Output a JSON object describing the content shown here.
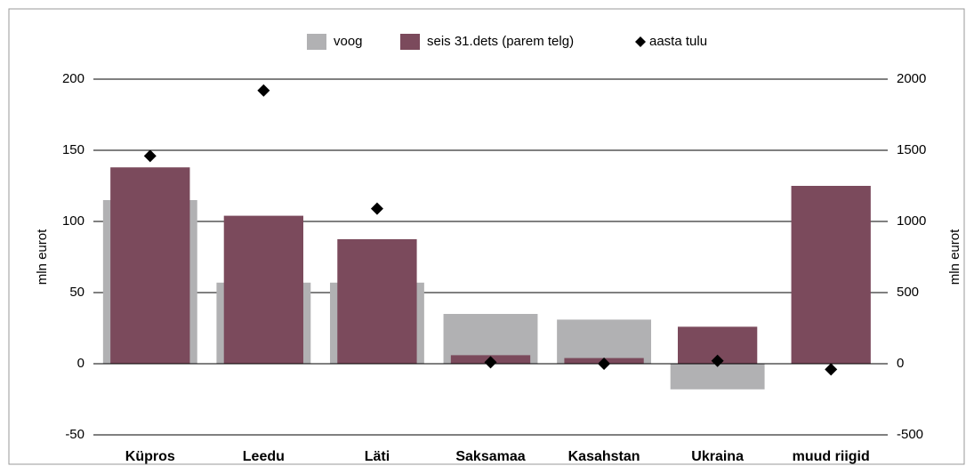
{
  "chart_data": {
    "type": "bar",
    "categories": [
      "Küpros",
      "Leedu",
      "Läti",
      "Saksamaa",
      "Kasahstan",
      "Ukraina",
      "muud riigid"
    ],
    "series": [
      {
        "name": "voog",
        "color": "#b1b1b3",
        "type": "bar",
        "values": [
          115,
          57,
          57,
          35,
          31,
          -18,
          0
        ]
      },
      {
        "name": "seis 31.dets (parem telg)",
        "color": "#7b4a5c",
        "type": "bar",
        "axis": "y2",
        "values": [
          1380,
          1040,
          875,
          60,
          40,
          260,
          1250
        ]
      },
      {
        "name": "aasta tulu",
        "color": "#000000",
        "type": "scatter",
        "values": [
          146,
          192,
          109,
          1,
          0,
          2,
          -4
        ]
      }
    ],
    "ylabel": "mln eurot",
    "y2label": "mln eurot",
    "ylim": [
      -50,
      200
    ],
    "yticks": [
      -50,
      0,
      50,
      100,
      150,
      200
    ],
    "y2lim": [
      -500,
      2000
    ],
    "y2ticks": [
      -500,
      0,
      500,
      1000,
      1500,
      2000
    ],
    "grid": true,
    "legend": "top"
  }
}
